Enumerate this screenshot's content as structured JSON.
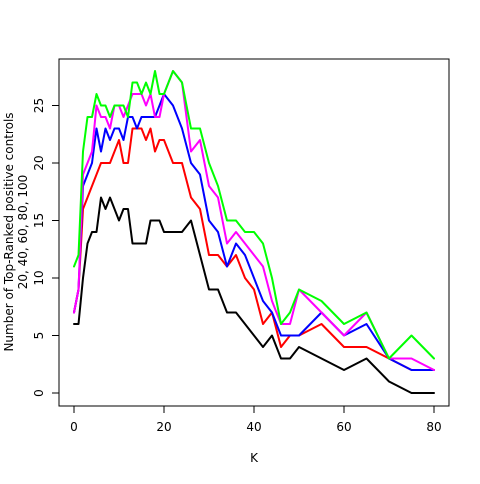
{
  "chart_data": {
    "type": "line",
    "xlabel": "K",
    "ylabel_line1": "Number of Top-Ranked positive controls",
    "ylabel_line2": "20, 40, 60, 80, 100",
    "xlim": [
      0,
      80
    ],
    "ylim": [
      0,
      28
    ],
    "x_ticks": [
      0,
      20,
      40,
      60,
      80
    ],
    "y_ticks": [
      0,
      5,
      10,
      15,
      20,
      25
    ],
    "grid": false,
    "legend": "none",
    "x": [
      0,
      1,
      2,
      3,
      4,
      5,
      6,
      7,
      8,
      9,
      10,
      11,
      12,
      13,
      14,
      15,
      16,
      17,
      18,
      19,
      20,
      22,
      24,
      26,
      28,
      30,
      32,
      34,
      36,
      38,
      40,
      42,
      44,
      46,
      48,
      50,
      55,
      60,
      65,
      70,
      75,
      80
    ],
    "series": [
      {
        "color": "#000000",
        "values": [
          6,
          6,
          10,
          13,
          14,
          14,
          17,
          16,
          17,
          16,
          15,
          16,
          16,
          13,
          13,
          13,
          13,
          15,
          15,
          15,
          14,
          14,
          14,
          15,
          12,
          9,
          9,
          7,
          7,
          6,
          5,
          4,
          5,
          3,
          3,
          4,
          3,
          2,
          3,
          1,
          0,
          0
        ]
      },
      {
        "color": "#ff0000",
        "values": [
          7,
          9,
          16,
          17,
          18,
          19,
          20,
          20,
          20,
          21,
          22,
          20,
          20,
          23,
          23,
          23,
          22,
          23,
          21,
          22,
          22,
          20,
          20,
          17,
          16,
          12,
          12,
          11,
          12,
          10,
          9,
          6,
          7,
          4,
          5,
          5,
          6,
          4,
          4,
          3,
          2,
          2
        ]
      },
      {
        "color": "#0000ff",
        "values": [
          7,
          9,
          18,
          19,
          20,
          23,
          21,
          23,
          22,
          23,
          23,
          22,
          24,
          24,
          23,
          24,
          24,
          24,
          24,
          25,
          26,
          25,
          23,
          20,
          19,
          15,
          14,
          11,
          13,
          12,
          10,
          8,
          7,
          5,
          5,
          5,
          7,
          5,
          6,
          3,
          2,
          2
        ]
      },
      {
        "color": "#ff00ff",
        "values": [
          7,
          9,
          19,
          20,
          21,
          25,
          24,
          24,
          23,
          25,
          25,
          24,
          25,
          26,
          26,
          26,
          25,
          26,
          24,
          24,
          26,
          28,
          27,
          21,
          22,
          18,
          17,
          13,
          14,
          13,
          12,
          11,
          8,
          6,
          6,
          9,
          7,
          5,
          7,
          3,
          3,
          2
        ]
      },
      {
        "color": "#00ff00",
        "values": [
          11,
          12,
          21,
          24,
          24,
          26,
          25,
          25,
          24,
          25,
          25,
          25,
          24,
          27,
          27,
          26,
          27,
          26,
          28,
          26,
          26,
          28,
          27,
          23,
          23,
          20,
          18,
          15,
          15,
          14,
          14,
          13,
          10,
          6,
          7,
          9,
          8,
          6,
          7,
          3,
          5,
          3
        ]
      }
    ]
  }
}
